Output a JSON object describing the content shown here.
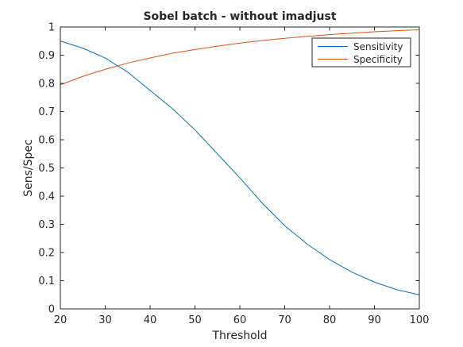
{
  "chart_data": {
    "type": "line",
    "title": "Sobel batch - without imadjust",
    "xlabel": "Threshold",
    "ylabel": "Sens/Spec",
    "xlim": [
      20,
      100
    ],
    "ylim": [
      0,
      1
    ],
    "xticks": [
      20,
      30,
      40,
      50,
      60,
      70,
      80,
      90,
      100
    ],
    "yticks": [
      0,
      0.1,
      0.2,
      0.3,
      0.4,
      0.5,
      0.6,
      0.7,
      0.8,
      0.9,
      1
    ],
    "ytick_labels": [
      "0",
      "0.1",
      "0.2",
      "0.3",
      "0.4",
      "0.5",
      "0.6",
      "0.7",
      "0.8",
      "0.9",
      "1"
    ],
    "grid": false,
    "legend_position": "top-right",
    "x": [
      20,
      25,
      30,
      35,
      40,
      45,
      50,
      55,
      60,
      65,
      70,
      75,
      80,
      85,
      90,
      95,
      100
    ],
    "series": [
      {
        "name": "Sensitivity",
        "color": "#0072BD",
        "values": [
          0.95,
          0.925,
          0.89,
          0.84,
          0.775,
          0.71,
          0.635,
          0.55,
          0.465,
          0.375,
          0.295,
          0.23,
          0.175,
          0.13,
          0.095,
          0.068,
          0.05
        ]
      },
      {
        "name": "Specificity",
        "color": "#D95319",
        "values": [
          0.795,
          0.825,
          0.85,
          0.872,
          0.89,
          0.907,
          0.92,
          0.932,
          0.943,
          0.952,
          0.96,
          0.967,
          0.973,
          0.978,
          0.983,
          0.987,
          0.99
        ]
      }
    ]
  }
}
